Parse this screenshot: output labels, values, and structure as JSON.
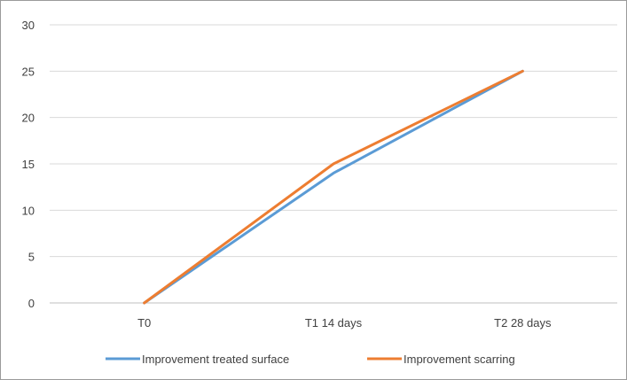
{
  "chart_data": {
    "type": "line",
    "categories": [
      "T0",
      "T1 14 days",
      "T2 28 days"
    ],
    "series": [
      {
        "name": "Improvement treated surface",
        "values": [
          0,
          14,
          25
        ],
        "color": "#5B9BD5"
      },
      {
        "name": "Improvement scarring",
        "values": [
          0,
          15,
          25
        ],
        "color": "#ED7D31"
      }
    ],
    "ylim": [
      0,
      30
    ],
    "yticks": [
      0,
      5,
      10,
      15,
      20,
      25,
      30
    ],
    "grid": true,
    "legend_position": "bottom",
    "title": "",
    "xlabel": "",
    "ylabel": ""
  }
}
